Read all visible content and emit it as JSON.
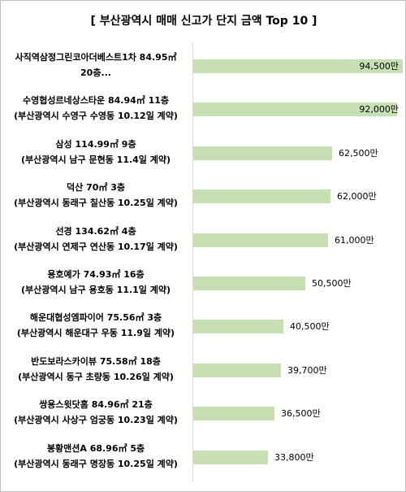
{
  "chart_data": {
    "type": "bar",
    "orientation": "horizontal",
    "title": "[ 부산광역시 매매 신고가 단지 금액 Top 10 ]",
    "value_suffix": "만",
    "xlim": [
      0,
      96000
    ],
    "items": [
      {
        "line1": "사직역삼정그린코아더베스트1차 84.95㎡",
        "line2": "20층...",
        "value": 94500,
        "label": "94,500만"
      },
      {
        "line1": "수영협성르네상스타운 84.94㎡ 11층",
        "line2": "(부산광역시 수영구 수영동 10.12일 계약)",
        "value": 92000,
        "label": "92,000만"
      },
      {
        "line1": "삼성 114.99㎡ 9층",
        "line2": "(부산광역시 남구 문현동 11.4일 계약)",
        "value": 62500,
        "label": "62,500만"
      },
      {
        "line1": "덕산 70㎡ 3층",
        "line2": "(부산광역시 동래구 칠산동 10.25일 계약)",
        "value": 62000,
        "label": "62,000만"
      },
      {
        "line1": "선경 134.62㎡ 4층",
        "line2": "(부산광역시 연제구 연산동 10.17일 계약)",
        "value": 61000,
        "label": "61,000만"
      },
      {
        "line1": "용호예가 74.93㎡ 16층",
        "line2": "(부산광역시 남구 용호동 11.1일 계약)",
        "value": 50500,
        "label": "50,500만"
      },
      {
        "line1": "해운대협성엠파이어 75.56㎡ 3층",
        "line2": "(부산광역시 해운대구 우동 11.9일 계약)",
        "value": 40500,
        "label": "40,500만"
      },
      {
        "line1": "반도보라스카이뷰 75.58㎡ 18층",
        "line2": "(부산광역시 동구 초량동 10.26일 계약)",
        "value": 39700,
        "label": "39,700만"
      },
      {
        "line1": "쌍용스윗닷홈 84.96㎡ 21층",
        "line2": "(부산광역시 사상구 엄궁동 10.23일 계약)",
        "value": 36500,
        "label": "36,500만"
      },
      {
        "line1": "봉황맨션A 68.96㎡ 5층",
        "line2": "(부산광역시 동래구 명장동 10.25일 계약)",
        "value": 33800,
        "label": "33,800만"
      }
    ],
    "bar_color": "#c6e0b4"
  }
}
